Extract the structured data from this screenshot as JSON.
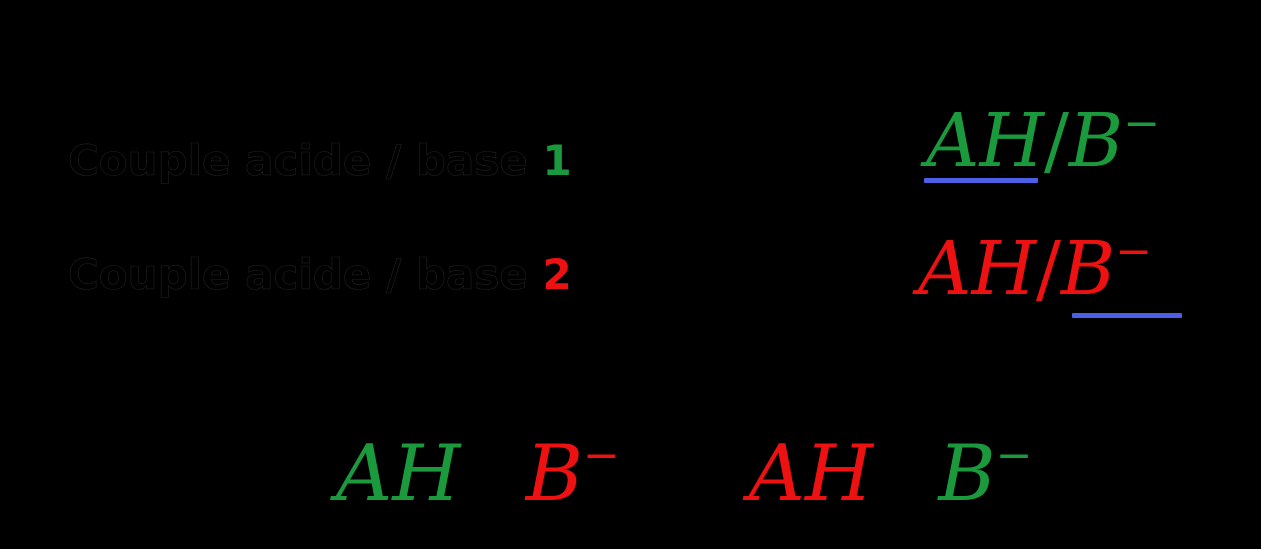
{
  "colors": {
    "background": "#000000",
    "text": "#000000",
    "green": "#1a9a3c",
    "red": "#ee1111",
    "underline": "#4d5fe6"
  },
  "couples": [
    {
      "label": "Couple acide / base",
      "number": "1",
      "acid": "AH",
      "slash": "/",
      "base": "B",
      "charge": "−"
    },
    {
      "label": "Couple acide / base",
      "number": "2",
      "acid": "AH",
      "slash": "/",
      "base": "B",
      "charge": "−"
    }
  ],
  "equation": {
    "reactant_acid": "AH",
    "plus1": "+",
    "reactant_base": "B",
    "reactant_charge": "−",
    "equals": "=",
    "product_acid": "AH",
    "plus2": "+",
    "product_base": "B",
    "product_charge": "−"
  }
}
